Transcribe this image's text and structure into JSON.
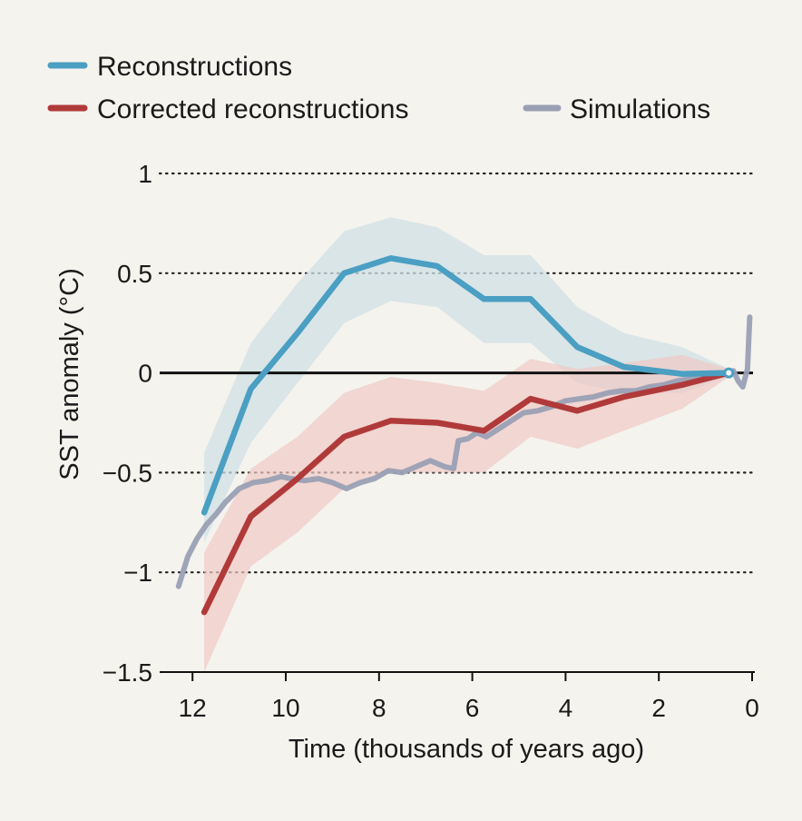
{
  "colors": {
    "reconstructions": "#4a9fc2",
    "reconstructions_band": "#cfe0e4",
    "corrected": "#b03a3a",
    "corrected_band": "#efc9c5",
    "simulations": "#9aa0b4",
    "background": "#f5f3ee"
  },
  "chart_data": {
    "type": "line",
    "xlabel": "Time (thousands of years ago)",
    "ylabel": "SST anomaly (°C)",
    "xlim": [
      12.5,
      0
    ],
    "ylim": [
      -1.5,
      1
    ],
    "xticks": [
      "12",
      "10",
      "8",
      "6",
      "4",
      "2",
      "0"
    ],
    "yticks": [
      "1",
      "0.5",
      "0",
      "−0.5",
      "−1",
      "−1.5"
    ],
    "grid": "horizontal dotted",
    "legend": [
      {
        "label": "Reconstructions",
        "series": "reconstructions"
      },
      {
        "label": "Corrected reconstructions",
        "series": "corrected"
      },
      {
        "label": "Simulations",
        "series": "simulations"
      }
    ],
    "series": [
      {
        "name": "Reconstructions",
        "x": [
          11.75,
          10.75,
          9.75,
          8.75,
          7.75,
          6.75,
          5.75,
          4.75,
          3.75,
          2.75,
          1.5,
          0.5
        ],
        "y": [
          -0.7,
          -0.08,
          0.2,
          0.5,
          0.575,
          0.535,
          0.37,
          0.37,
          0.13,
          0.03,
          -0.005,
          0.0
        ],
        "lower": [
          -0.85,
          -0.35,
          -0.05,
          0.25,
          0.36,
          0.33,
          0.15,
          0.15,
          -0.05,
          -0.1,
          -0.1,
          -0.02
        ],
        "upper": [
          -0.4,
          0.15,
          0.45,
          0.71,
          0.78,
          0.73,
          0.59,
          0.59,
          0.33,
          0.2,
          0.13,
          0.02
        ]
      },
      {
        "name": "Corrected reconstructions",
        "x": [
          11.75,
          10.75,
          9.75,
          8.75,
          7.75,
          6.75,
          5.75,
          4.75,
          3.75,
          2.75,
          1.5,
          0.5
        ],
        "y": [
          -1.2,
          -0.72,
          -0.53,
          -0.32,
          -0.24,
          -0.25,
          -0.29,
          -0.13,
          -0.19,
          -0.12,
          -0.06,
          0.0
        ],
        "lower": [
          -1.5,
          -0.97,
          -0.8,
          -0.58,
          -0.5,
          -0.5,
          -0.5,
          -0.32,
          -0.38,
          -0.29,
          -0.18,
          -0.02
        ],
        "upper": [
          -0.9,
          -0.48,
          -0.32,
          -0.1,
          -0.02,
          -0.05,
          -0.09,
          0.07,
          0.02,
          0.05,
          0.09,
          0.02
        ]
      },
      {
        "name": "Simulations",
        "x": [
          12.3,
          12.1,
          11.9,
          11.7,
          11.5,
          11.3,
          11.0,
          10.7,
          10.4,
          10.1,
          9.9,
          9.6,
          9.3,
          9.0,
          8.7,
          8.4,
          8.1,
          7.8,
          7.5,
          7.2,
          6.9,
          6.6,
          6.4,
          6.3,
          6.1,
          5.9,
          5.7,
          5.5,
          5.3,
          5.1,
          4.9,
          4.6,
          4.3,
          4.0,
          3.7,
          3.4,
          3.1,
          2.8,
          2.5,
          2.2,
          1.9,
          1.6,
          1.3,
          1.0,
          0.7,
          0.4,
          0.3,
          0.2,
          0.1,
          0.05
        ],
        "y": [
          -1.07,
          -0.92,
          -0.83,
          -0.76,
          -0.71,
          -0.65,
          -0.58,
          -0.55,
          -0.54,
          -0.52,
          -0.53,
          -0.54,
          -0.53,
          -0.55,
          -0.58,
          -0.55,
          -0.53,
          -0.49,
          -0.5,
          -0.47,
          -0.44,
          -0.47,
          -0.48,
          -0.34,
          -0.33,
          -0.3,
          -0.32,
          -0.29,
          -0.26,
          -0.23,
          -0.2,
          -0.19,
          -0.17,
          -0.14,
          -0.13,
          -0.12,
          -0.1,
          -0.09,
          -0.09,
          -0.07,
          -0.06,
          -0.04,
          -0.03,
          -0.02,
          -0.01,
          0.01,
          -0.04,
          -0.07,
          0.02,
          0.28
        ]
      }
    ]
  }
}
